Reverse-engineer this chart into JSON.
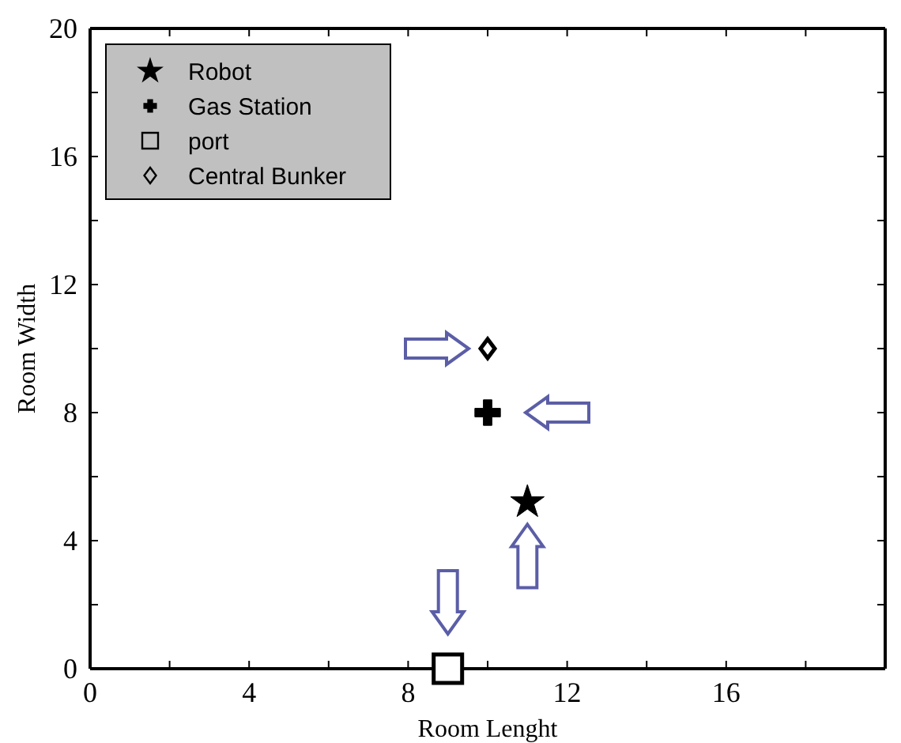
{
  "chart_data": {
    "type": "scatter",
    "xlabel": "Room Lenght",
    "ylabel": "Room Width",
    "xlim": [
      0,
      20
    ],
    "ylim": [
      0,
      20
    ],
    "xticks": [
      0,
      {
        "value": 2,
        "label": null
      },
      4,
      {
        "value": 6,
        "label": null
      },
      8,
      {
        "value": 10,
        "label": null
      },
      12,
      {
        "value": 14,
        "label": null
      },
      16,
      {
        "value": 18,
        "label": null
      }
    ],
    "yticks": [
      0,
      {
        "value": 2,
        "label": null
      },
      4,
      {
        "value": 6,
        "label": null
      },
      8,
      {
        "value": 10,
        "label": null
      },
      12,
      {
        "value": 14,
        "label": null
      },
      16,
      {
        "value": 18,
        "label": null
      },
      20
    ],
    "legend": "top left",
    "grid": false,
    "series": [
      {
        "name": "Robot",
        "color": "#000000",
        "marker": "star",
        "x": [
          11
        ],
        "values": [
          5.2
        ]
      },
      {
        "name": "Gas Station",
        "color": "#000000",
        "marker": "cross",
        "x": [
          10
        ],
        "values": [
          8
        ]
      },
      {
        "name": "port",
        "color": "#000000",
        "marker": "square",
        "x": [
          9
        ],
        "values": [
          0
        ]
      },
      {
        "name": "Central Bunker",
        "color": "#000000",
        "marker": "diamond",
        "x": [
          10
        ],
        "values": [
          10
        ]
      }
    ]
  }
}
